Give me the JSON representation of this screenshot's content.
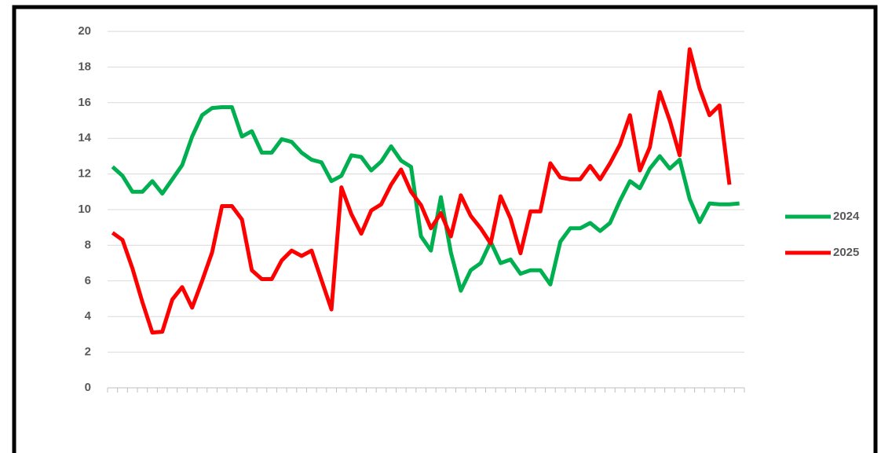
{
  "chart_data": {
    "type": "line",
    "categories": [
      null,
      null,
      null,
      null,
      null,
      null,
      null,
      null,
      null,
      null,
      null,
      null,
      null,
      null,
      null,
      null,
      null,
      null,
      null,
      null,
      null,
      null,
      null,
      null,
      null,
      null,
      null,
      null,
      null,
      null,
      null,
      null,
      null,
      null,
      null,
      null,
      null,
      null,
      null,
      null,
      null,
      null,
      null,
      null,
      null,
      null,
      null,
      null,
      null,
      null,
      null,
      null,
      null,
      null,
      null,
      null,
      null,
      null,
      null,
      null,
      null,
      null,
      null,
      null
    ],
    "series": [
      {
        "name": "2024",
        "color": "#00b050",
        "values": [
          12.4,
          11.9,
          11.0,
          11.0,
          11.6,
          10.9,
          11.7,
          12.5,
          14.1,
          15.3,
          15.7,
          15.75,
          15.75,
          14.1,
          14.4,
          13.2,
          13.2,
          13.95,
          13.8,
          13.2,
          12.8,
          12.65,
          11.6,
          11.9,
          13.05,
          12.95,
          12.2,
          12.7,
          13.55,
          12.75,
          12.4,
          8.5,
          7.7,
          10.7,
          7.6,
          5.45,
          6.6,
          7.0,
          8.2,
          7.0,
          7.2,
          6.4,
          6.6,
          6.6,
          5.8,
          8.2,
          8.95,
          8.95,
          9.25,
          8.8,
          9.25,
          10.5,
          11.6,
          11.2,
          12.3,
          13.0,
          12.3,
          12.8,
          10.6,
          9.3,
          10.35,
          10.3,
          10.3,
          10.35
        ]
      },
      {
        "name": "2025",
        "color": "#ff0000",
        "values": [
          8.7,
          8.3,
          6.7,
          4.8,
          3.1,
          3.15,
          4.95,
          5.65,
          4.5,
          6.0,
          7.6,
          10.2,
          10.2,
          9.45,
          6.6,
          6.1,
          6.1,
          7.15,
          7.7,
          7.4,
          7.7,
          6.05,
          4.4,
          11.25,
          9.75,
          8.65,
          9.95,
          10.3,
          11.4,
          12.25,
          11.0,
          10.25,
          8.95,
          9.8,
          8.5,
          10.8,
          9.65,
          8.95,
          8.1,
          10.75,
          9.5,
          7.55,
          9.9,
          9.9,
          12.6,
          11.8,
          11.7,
          11.7,
          12.45,
          11.7,
          12.6,
          13.65,
          15.3,
          12.2,
          13.5,
          16.6,
          15.0,
          13.05,
          19.0,
          16.8,
          15.3,
          15.85,
          11.4,
          null
        ]
      }
    ],
    "ylim": [
      0,
      20
    ],
    "yticks": [
      0,
      2,
      4,
      6,
      8,
      10,
      12,
      14,
      16,
      18,
      20
    ],
    "grid": true,
    "legend": "right"
  }
}
